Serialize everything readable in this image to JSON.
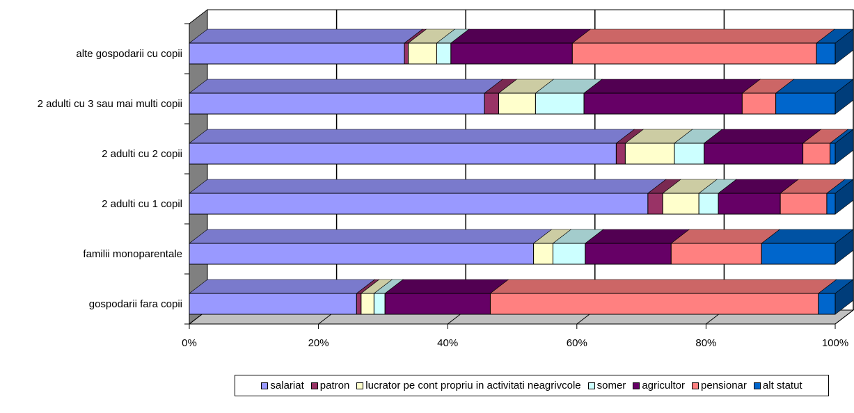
{
  "chart_data": {
    "type": "bar",
    "orientation": "horizontal",
    "stacked": "100%",
    "style": "3d",
    "categories": [
      "alte gospodarii cu copii",
      "2 adulti cu 3 sau mai multi copii",
      "2 adulti cu 2 copii",
      "2 adulti cu 1 copil",
      "familii monoparentale",
      "gospodarii fara copii"
    ],
    "series": [
      {
        "name": "salariat",
        "color": "#9999FF",
        "values": [
          33.3,
          45.7,
          66.1,
          71.0,
          53.3,
          25.9
        ]
      },
      {
        "name": "patron",
        "color": "#993366",
        "values": [
          0.6,
          2.2,
          1.4,
          2.3,
          0.0,
          0.7
        ]
      },
      {
        "name": "lucrator pe cont propriu in activitati neagrivcole",
        "color": "#FFFFCC",
        "values": [
          4.4,
          5.7,
          7.6,
          5.6,
          3.0,
          2.0
        ]
      },
      {
        "name": "somer",
        "color": "#CCFFFF",
        "values": [
          2.2,
          7.5,
          4.6,
          3.0,
          5.0,
          1.7
        ]
      },
      {
        "name": "agricultor",
        "color": "#660066",
        "values": [
          18.8,
          24.5,
          15.3,
          9.6,
          13.3,
          16.3
        ]
      },
      {
        "name": "pensionar",
        "color": "#FF8080",
        "values": [
          37.8,
          5.2,
          4.2,
          7.2,
          14.0,
          50.8
        ]
      },
      {
        "name": "alt statut",
        "color": "#0066CC",
        "values": [
          2.9,
          9.2,
          0.8,
          1.3,
          11.4,
          2.6
        ]
      }
    ],
    "x_ticks": [
      "0%",
      "20%",
      "40%",
      "60%",
      "80%",
      "100%"
    ],
    "xlim": [
      0,
      100
    ],
    "grid": true,
    "legend_position": "bottom"
  }
}
